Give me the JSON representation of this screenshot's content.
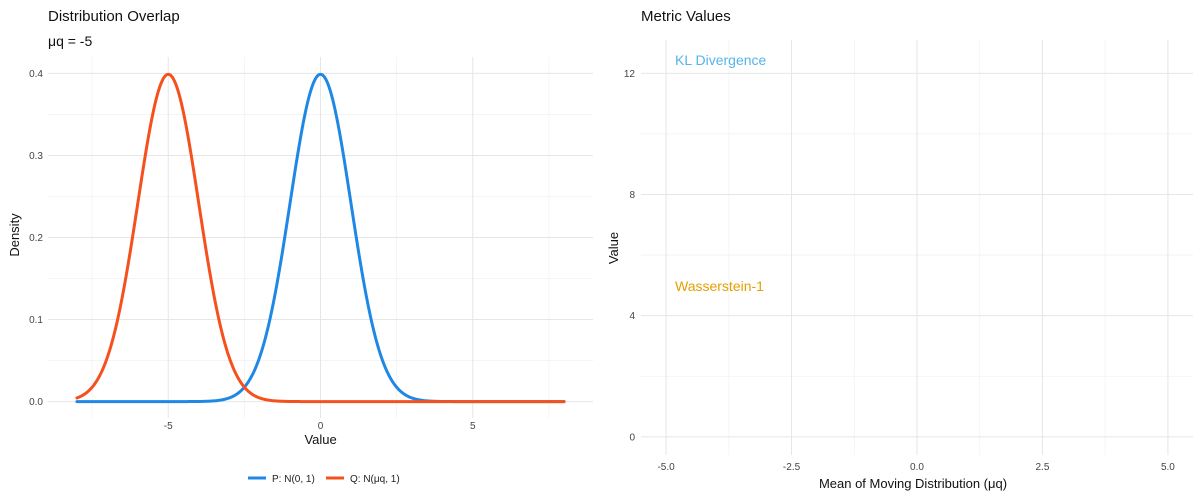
{
  "chart_data": [
    {
      "type": "line",
      "title": "Distribution Overlap",
      "subtitle": "μq = -5",
      "xlabel": "Value",
      "ylabel": "Density",
      "xlim": [
        -8,
        8
      ],
      "ylim": [
        0,
        0.4
      ],
      "x_ticks": [
        -5,
        0,
        5
      ],
      "y_ticks": [
        0.0,
        0.1,
        0.2,
        0.3,
        0.4
      ],
      "y_tick_labels": [
        "0.0",
        "0.1",
        "0.2",
        "0.3",
        "0.4"
      ],
      "grid": true,
      "legend_position": "bottom",
      "series": [
        {
          "name": "P: N(0, 1)",
          "distribution": "normal",
          "mean": 0,
          "sd": 1,
          "color": "#1f88e5"
        },
        {
          "name": "Q: N(μq, 1)",
          "distribution": "normal",
          "mean": -5,
          "sd": 1,
          "color": "#f4511e"
        }
      ]
    },
    {
      "type": "line",
      "title": "Metric Values",
      "xlabel": "Mean of Moving Distribution (μq)",
      "ylabel": "Value",
      "xlim": [
        -5,
        5
      ],
      "ylim": [
        0,
        12.5
      ],
      "x_ticks": [
        -5.0,
        -2.5,
        0.0,
        2.5,
        5.0
      ],
      "x_tick_labels": [
        "-5.0",
        "-2.5",
        "0.0",
        "2.5",
        "5.0"
      ],
      "y_ticks": [
        0,
        4,
        8,
        12
      ],
      "grid": true,
      "series": [],
      "annotations": [
        {
          "text": "KL Divergence",
          "x": -5,
          "y": 12.5,
          "color": "#56b4e9"
        },
        {
          "text": "Wasserstein-1",
          "x": -5,
          "y": 5,
          "color": "#e69f00"
        }
      ]
    }
  ]
}
